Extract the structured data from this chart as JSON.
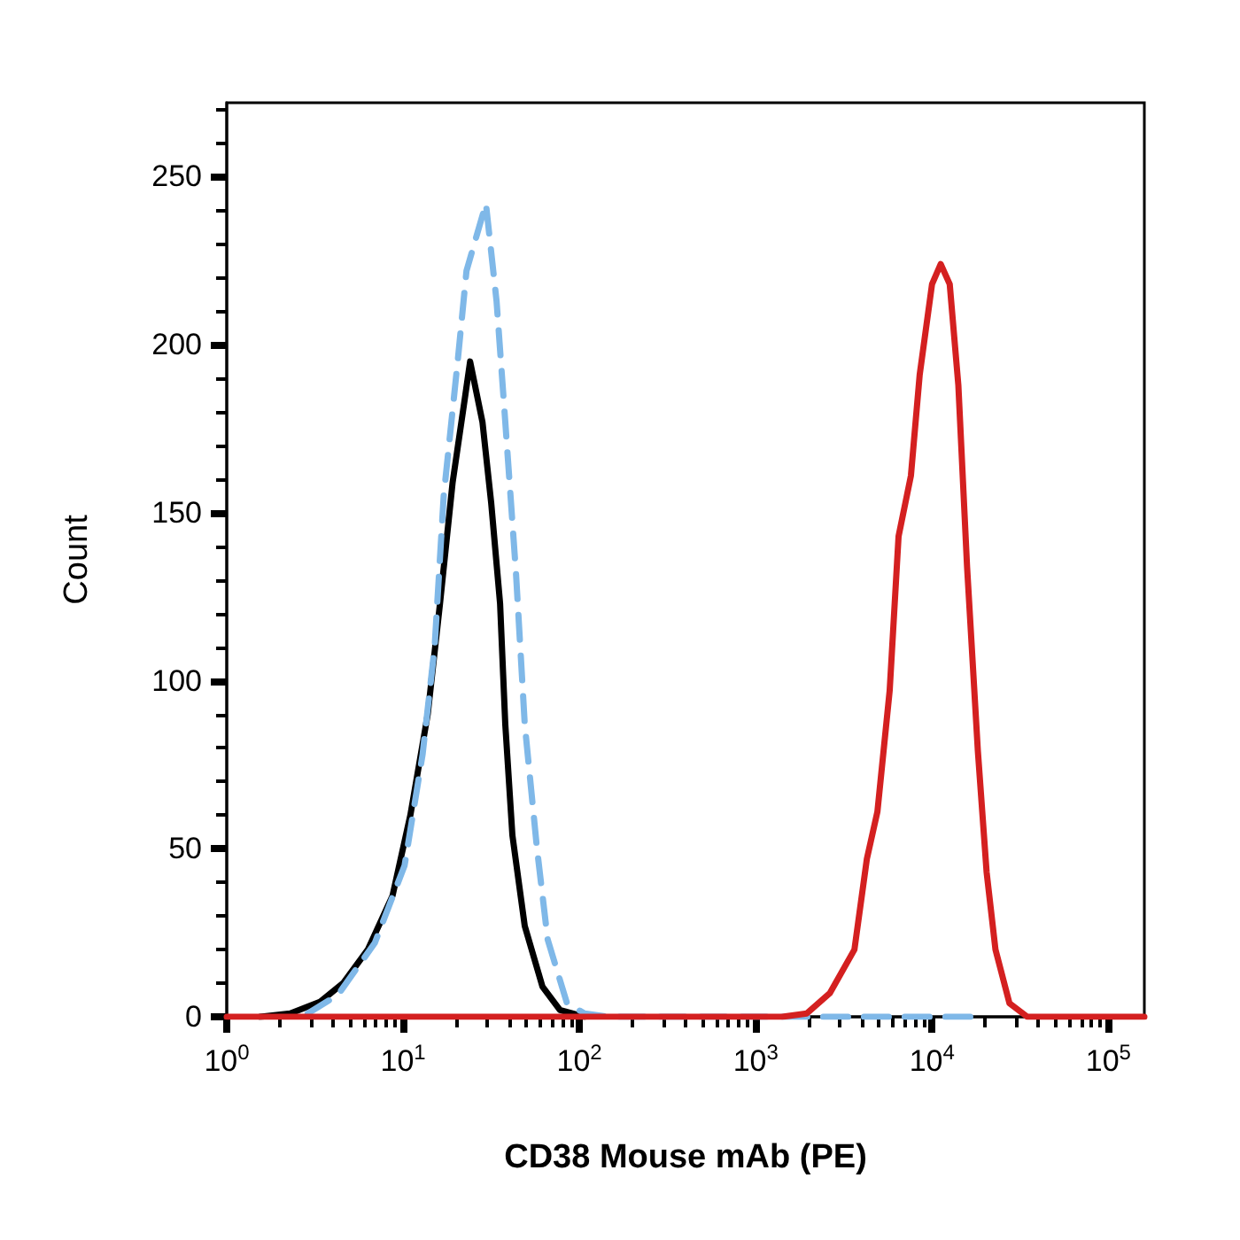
{
  "chart_data": {
    "type": "line",
    "xlabel": "CD38 Mouse mAb (PE)",
    "ylabel": "Count",
    "log": "x",
    "grid": false,
    "marker": "none",
    "xlim": [
      1,
      160000
    ],
    "ylim": [
      0,
      272
    ],
    "xticks": [
      {
        "value": 1,
        "label": "10$^{0}$"
      },
      {
        "value": 2,
        "label": null
      },
      {
        "value": 3,
        "label": null
      },
      {
        "value": 4,
        "label": null
      },
      {
        "value": 5,
        "label": null
      },
      {
        "value": 6,
        "label": null
      },
      {
        "value": 7,
        "label": null
      },
      {
        "value": 8,
        "label": null
      },
      {
        "value": 9,
        "label": null
      },
      {
        "value": 10,
        "label": "10$^{1}$"
      },
      {
        "value": 20,
        "label": null
      },
      {
        "value": 30,
        "label": null
      },
      {
        "value": 40,
        "label": null
      },
      {
        "value": 50,
        "label": null
      },
      {
        "value": 60,
        "label": null
      },
      {
        "value": 70,
        "label": null
      },
      {
        "value": 80,
        "label": null
      },
      {
        "value": 90,
        "label": null
      },
      {
        "value": 100,
        "label": "10$^{2}$"
      },
      {
        "value": 200,
        "label": null
      },
      {
        "value": 300,
        "label": null
      },
      {
        "value": 400,
        "label": null
      },
      {
        "value": 500,
        "label": null
      },
      {
        "value": 600,
        "label": null
      },
      {
        "value": 700,
        "label": null
      },
      {
        "value": 800,
        "label": null
      },
      {
        "value": 900,
        "label": null
      },
      {
        "value": 1000,
        "label": "10$^{3}$"
      },
      {
        "value": 2000,
        "label": null
      },
      {
        "value": 3000,
        "label": null
      },
      {
        "value": 4000,
        "label": null
      },
      {
        "value": 5000,
        "label": null
      },
      {
        "value": 6000,
        "label": null
      },
      {
        "value": 7000,
        "label": null
      },
      {
        "value": 8000,
        "label": null
      },
      {
        "value": 9000,
        "label": null
      },
      {
        "value": 10000,
        "label": "10$^{4}$"
      },
      {
        "value": 20000,
        "label": null
      },
      {
        "value": 30000,
        "label": null
      },
      {
        "value": 40000,
        "label": null
      },
      {
        "value": 50000,
        "label": null
      },
      {
        "value": 60000,
        "label": null
      },
      {
        "value": 70000,
        "label": null
      },
      {
        "value": 80000,
        "label": null
      },
      {
        "value": 90000,
        "label": null
      },
      {
        "value": 100000,
        "label": "10$^{5}$"
      }
    ],
    "yticks": [
      0,
      {
        "value": 10,
        "label": null
      },
      {
        "value": 20,
        "label": null
      },
      {
        "value": 30,
        "label": null
      },
      {
        "value": 40,
        "label": null
      },
      50,
      {
        "value": 60,
        "label": null
      },
      {
        "value": 70,
        "label": null
      },
      {
        "value": 80,
        "label": null
      },
      {
        "value": 90,
        "label": null
      },
      100,
      {
        "value": 110,
        "label": null
      },
      {
        "value": 120,
        "label": null
      },
      {
        "value": 130,
        "label": null
      },
      {
        "value": 140,
        "label": null
      },
      150,
      {
        "value": 160,
        "label": null
      },
      {
        "value": 170,
        "label": null
      },
      {
        "value": 180,
        "label": null
      },
      {
        "value": 190,
        "label": null
      },
      200,
      {
        "value": 210,
        "label": null
      },
      {
        "value": 220,
        "label": null
      },
      {
        "value": 230,
        "label": null
      },
      {
        "value": 240,
        "label": null
      },
      250,
      {
        "value": 260,
        "label": null
      },
      {
        "value": 270,
        "label": null
      }
    ],
    "series": [
      {
        "color": "#000000",
        "line_style": "solid",
        "x": [
          1.55,
          2.29,
          3.39,
          4.57,
          6.31,
          8.71,
          11.0,
          13.8,
          16.2,
          19.1,
          22.4,
          24.0,
          28.2,
          31.6,
          35.5,
          38.0,
          41.7,
          49.0,
          61.7,
          77.6,
          107
        ],
        "values": [
          0,
          1,
          4.5,
          10,
          20,
          36,
          60,
          90,
          123,
          159,
          184,
          195,
          177,
          153,
          123,
          87,
          54,
          27,
          9,
          2,
          0
        ]
      },
      {
        "color": "#7fb8e8",
        "line_style": "dashed",
        "x": [
          2.88,
          4.27,
          6.92,
          10.2,
          12.9,
          15.1,
          17.0,
          20.4,
          22.9,
          29.5,
          33.9,
          38.0,
          43.7,
          49.0,
          57.5,
          66.1,
          85.1,
          107,
          145,
          20000
        ],
        "values": [
          1,
          6.5,
          22,
          45,
          78,
          110,
          155,
          195,
          222,
          242,
          213,
          177,
          132,
          87,
          50,
          23,
          4,
          1,
          0,
          0
        ]
      },
      {
        "color": "#d42020",
        "line_style": "solid",
        "x": [
          1,
          1413,
          1950,
          2630,
          3630,
          4270,
          4900,
          5750,
          6460,
          7590,
          8510,
          10000,
          11200,
          12600,
          14100,
          15800,
          18200,
          20400,
          22900,
          27500,
          34700,
          160000
        ],
        "values": [
          0,
          0,
          1,
          7,
          20,
          47,
          61,
          97,
          143,
          161,
          191,
          218,
          224,
          218,
          188,
          134,
          79,
          43,
          20,
          4,
          0,
          0
        ]
      }
    ]
  }
}
